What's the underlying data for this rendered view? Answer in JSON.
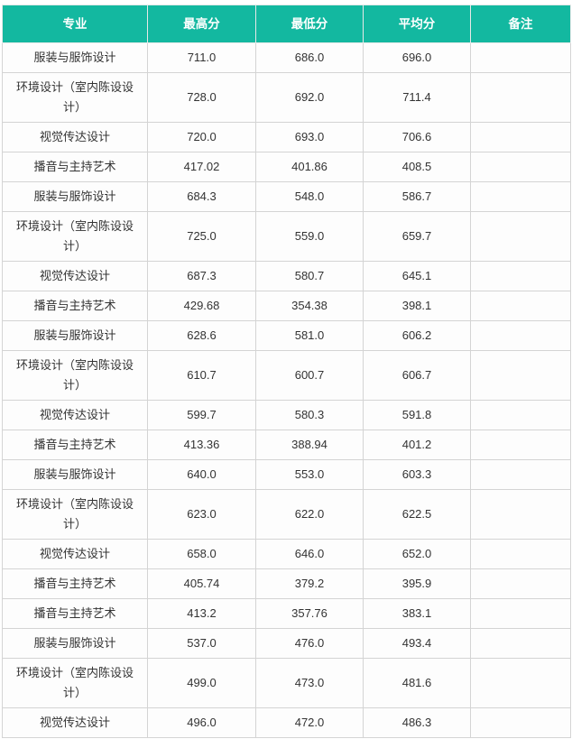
{
  "header_color": "#13b8a0",
  "columns": [
    "专业",
    "最高分",
    "最低分",
    "平均分",
    "备注"
  ],
  "rows": [
    [
      "服装与服饰设计",
      "711.0",
      "686.0",
      "696.0",
      ""
    ],
    [
      "环境设计（室内陈设设计）",
      "728.0",
      "692.0",
      "711.4",
      ""
    ],
    [
      "视觉传达设计",
      "720.0",
      "693.0",
      "706.6",
      ""
    ],
    [
      "播音与主持艺术",
      "417.02",
      "401.86",
      "408.5",
      ""
    ],
    [
      "服装与服饰设计",
      "684.3",
      "548.0",
      "586.7",
      ""
    ],
    [
      "环境设计（室内陈设设计）",
      "725.0",
      "559.0",
      "659.7",
      ""
    ],
    [
      "视觉传达设计",
      "687.3",
      "580.7",
      "645.1",
      ""
    ],
    [
      "播音与主持艺术",
      "429.68",
      "354.38",
      "398.1",
      ""
    ],
    [
      "服装与服饰设计",
      "628.6",
      "581.0",
      "606.2",
      ""
    ],
    [
      "环境设计（室内陈设设计）",
      "610.7",
      "600.7",
      "606.7",
      ""
    ],
    [
      "视觉传达设计",
      "599.7",
      "580.3",
      "591.8",
      ""
    ],
    [
      "播音与主持艺术",
      "413.36",
      "388.94",
      "401.2",
      ""
    ],
    [
      "服装与服饰设计",
      "640.0",
      "553.0",
      "603.3",
      ""
    ],
    [
      "环境设计（室内陈设设计）",
      "623.0",
      "622.0",
      "622.5",
      ""
    ],
    [
      "视觉传达设计",
      "658.0",
      "646.0",
      "652.0",
      ""
    ],
    [
      "播音与主持艺术",
      "405.74",
      "379.2",
      "395.9",
      ""
    ],
    [
      "播音与主持艺术",
      "413.2",
      "357.76",
      "383.1",
      ""
    ],
    [
      "服装与服饰设计",
      "537.0",
      "476.0",
      "493.4",
      ""
    ],
    [
      "环境设计（室内陈设设计）",
      "499.0",
      "473.0",
      "481.6",
      ""
    ],
    [
      "视觉传达设计",
      "496.0",
      "472.0",
      "486.3",
      ""
    ]
  ]
}
